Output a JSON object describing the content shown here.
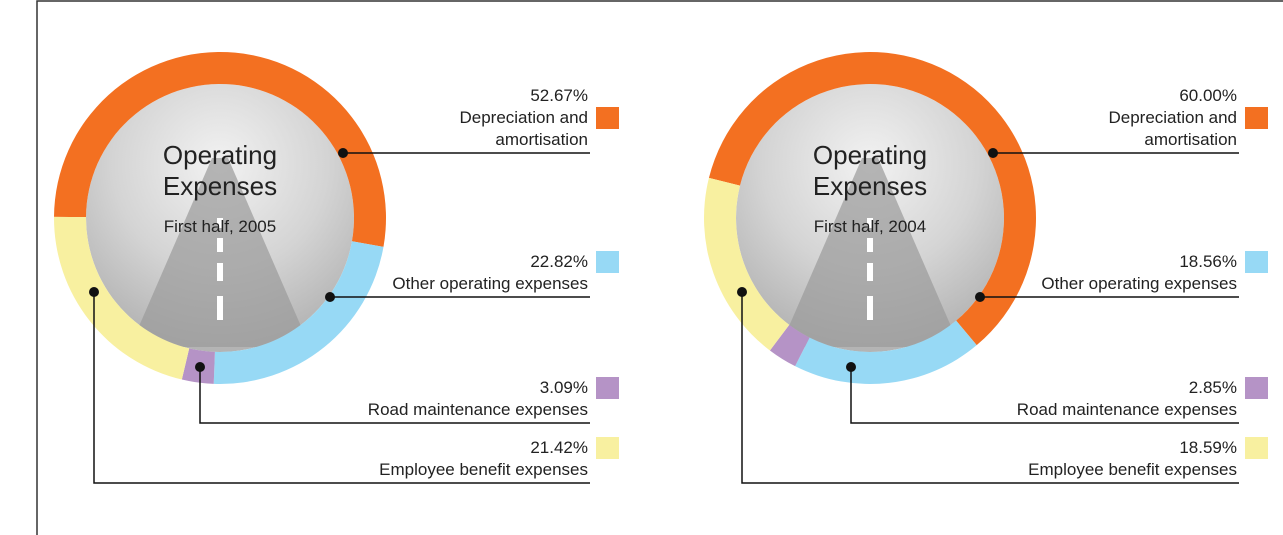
{
  "chart_data": [
    {
      "type": "pie",
      "donut": true,
      "title": "Operating Expenses",
      "subtitle": "First half, 2005",
      "categories": [
        "Depreciation and amortisation",
        "Other operating expenses",
        "Road maintenance expenses",
        "Employee benefit expenses"
      ],
      "values": [
        52.67,
        22.82,
        3.09,
        21.42
      ],
      "value_labels": [
        "52.67%",
        "22.82%",
        "3.09%",
        "21.42%"
      ],
      "colors": [
        "#f37021",
        "#97d9f5",
        "#b593c6",
        "#f8f0a0"
      ]
    },
    {
      "type": "pie",
      "donut": true,
      "title": "Operating Expenses",
      "subtitle": "First half, 2004",
      "categories": [
        "Depreciation and amortisation",
        "Other operating expenses",
        "Road maintenance expenses",
        "Employee benefit expenses"
      ],
      "values": [
        60.0,
        18.56,
        2.85,
        18.59
      ],
      "value_labels": [
        "60.00%",
        "18.56%",
        "2.85%",
        "18.59%"
      ],
      "colors": [
        "#f37021",
        "#97d9f5",
        "#b593c6",
        "#f8f0a0"
      ]
    }
  ]
}
